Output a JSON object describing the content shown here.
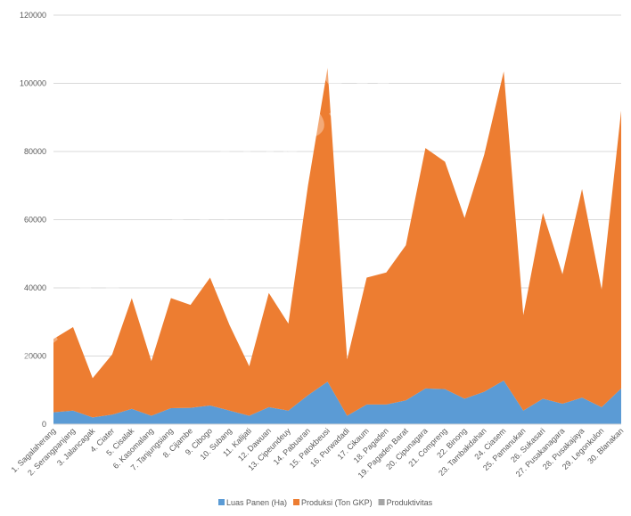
{
  "chart_data": {
    "type": "stacked_area",
    "watermark": "ps://subangkab.bps.",
    "categories": [
      "1. Sagalaherang",
      "2. Serangpanjang",
      "3. Jalancagak",
      "4. Ciater",
      "5. Cisalak",
      "6. Kasomalang",
      "7. Tanjungsiang",
      "8. Cijambe",
      "9. Cibogo",
      "10. Subang",
      "11. Kalijati",
      "12. Dawuan",
      "13. Cipeundeuy",
      "14. Pabuaran",
      "15. Patokbeusi",
      "16. Purwadadi",
      "17. Cikaum",
      "18. Pagaden",
      "19. Pagaden Barat",
      "20. Cipunagara",
      "21. Compreng",
      "22. Binong",
      "23. Tambakdahan",
      "24. Ciasem",
      "25. Pamanukan",
      "26. Sukasari",
      "27. Pusakanagara",
      "28. Pusakajaya",
      "29. Legonkulon",
      "30. Blanakan"
    ],
    "series": [
      {
        "name": "Luas Panen (Ha)",
        "color": "#5b9bd5",
        "values": [
          3500,
          4000,
          2000,
          2800,
          4500,
          2500,
          4700,
          4800,
          5500,
          4000,
          2500,
          5000,
          4000,
          8500,
          12500,
          2500,
          5800,
          5800,
          7000,
          10500,
          10300,
          7500,
          9500,
          12800,
          4000,
          7500,
          6000,
          7800,
          5000,
          10500
        ]
      },
      {
        "name": "Produksi (Ton GKP)",
        "color": "#ed7d31",
        "values": [
          21500,
          24500,
          11500,
          17700,
          32500,
          16000,
          32300,
          30200,
          37500,
          25000,
          14500,
          33500,
          25500,
          61500,
          92000,
          16500,
          37200,
          38700,
          45500,
          70500,
          66700,
          53000,
          69500,
          90700,
          28000,
          54500,
          38000,
          61200,
          34500,
          81500
        ]
      },
      {
        "name": "Produktivitas",
        "color": "#a5a5a5",
        "values": [
          6.1,
          6.1,
          5.8,
          6.3,
          7.2,
          6.4,
          6.9,
          6.3,
          6.8,
          6.3,
          5.8,
          6.7,
          6.4,
          7.2,
          7.4,
          6.6,
          6.4,
          6.7,
          6.5,
          6.7,
          6.5,
          7.1,
          7.3,
          7.1,
          7,
          7.3,
          6.3,
          7.8,
          6.9,
          7.8
        ]
      }
    ],
    "ylim": [
      0,
      120000
    ],
    "yticks": [
      0,
      20000,
      40000,
      60000,
      80000,
      100000,
      120000
    ],
    "grid": true,
    "legend": "bottom"
  }
}
